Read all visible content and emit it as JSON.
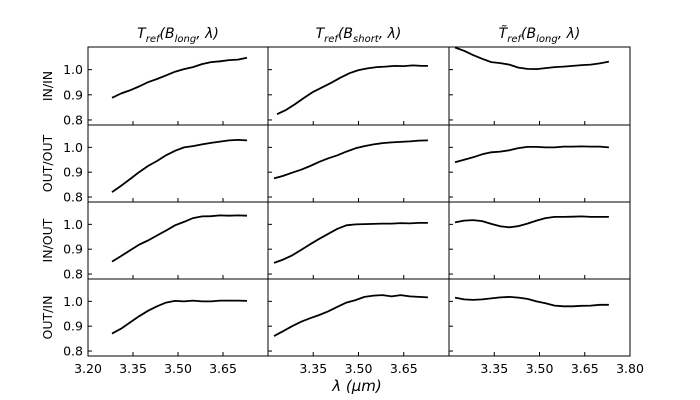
{
  "chart_data": {
    "type": "line",
    "layout": "grid",
    "xlabel": "λ (μm)",
    "xlim": [
      3.2,
      3.8
    ],
    "ylim": [
      0.78,
      1.09
    ],
    "x_ticks": [
      "3.20",
      "3.35",
      "3.50",
      "3.65",
      "3.80"
    ],
    "x_tick_values": [
      3.2,
      3.35,
      3.5,
      3.65,
      3.8
    ],
    "y_ticks": [
      "0.8",
      "0.9",
      "1.0"
    ],
    "y_tick_values": [
      0.8,
      0.9,
      1.0
    ],
    "columns": [
      {
        "title": "T_ref(B_long, λ)",
        "tilde": false,
        "base": "T",
        "sub": "ref",
        "args": "(B",
        "arg_sub": "long",
        "args_tail": ", λ)"
      },
      {
        "title": "T_ref(B_short, λ)",
        "tilde": false,
        "base": "T",
        "sub": "ref",
        "args": "(B",
        "arg_sub": "short",
        "args_tail": ", λ)"
      },
      {
        "title": "T̃_ref(B_long, λ)",
        "tilde": true,
        "base": "T̃",
        "sub": "ref",
        "args": "(B",
        "arg_sub": "long",
        "args_tail": ", λ)"
      }
    ],
    "rows": [
      "IN/IN",
      "OUT/OUT",
      "IN/OUT",
      "OUT/IN"
    ],
    "panels": [
      [
        {
          "x": [
            3.28,
            3.31,
            3.34,
            3.37,
            3.4,
            3.43,
            3.46,
            3.49,
            3.52,
            3.55,
            3.58,
            3.61,
            3.64,
            3.67,
            3.7,
            3.73
          ],
          "y": [
            0.888,
            0.905,
            0.918,
            0.933,
            0.95,
            0.963,
            0.977,
            0.992,
            1.002,
            1.01,
            1.022,
            1.03,
            1.033,
            1.038,
            1.04,
            1.047
          ]
        },
        {
          "x": [
            3.23,
            3.26,
            3.29,
            3.32,
            3.35,
            3.38,
            3.41,
            3.44,
            3.47,
            3.5,
            3.53,
            3.56,
            3.59,
            3.62,
            3.65,
            3.68,
            3.71,
            3.73
          ],
          "y": [
            0.823,
            0.84,
            0.863,
            0.888,
            0.912,
            0.93,
            0.948,
            0.968,
            0.986,
            0.998,
            1.005,
            1.01,
            1.012,
            1.015,
            1.014,
            1.017,
            1.015,
            1.015
          ]
        },
        {
          "x": [
            3.22,
            3.25,
            3.28,
            3.31,
            3.34,
            3.37,
            3.4,
            3.43,
            3.46,
            3.49,
            3.52,
            3.55,
            3.58,
            3.61,
            3.64,
            3.67,
            3.7,
            3.73
          ],
          "y": [
            1.088,
            1.075,
            1.058,
            1.043,
            1.03,
            1.026,
            1.02,
            1.008,
            1.003,
            1.002,
            1.006,
            1.01,
            1.012,
            1.015,
            1.018,
            1.02,
            1.025,
            1.032
          ]
        }
      ],
      [
        {
          "x": [
            3.28,
            3.31,
            3.34,
            3.37,
            3.4,
            3.43,
            3.46,
            3.49,
            3.52,
            3.55,
            3.58,
            3.61,
            3.64,
            3.67,
            3.7,
            3.73
          ],
          "y": [
            0.82,
            0.845,
            0.872,
            0.9,
            0.925,
            0.945,
            0.968,
            0.986,
            1.0,
            1.005,
            1.012,
            1.018,
            1.023,
            1.028,
            1.03,
            1.028
          ]
        },
        {
          "x": [
            3.22,
            3.25,
            3.28,
            3.31,
            3.34,
            3.37,
            3.4,
            3.43,
            3.46,
            3.49,
            3.52,
            3.55,
            3.58,
            3.61,
            3.64,
            3.67,
            3.7,
            3.73
          ],
          "y": [
            0.875,
            0.885,
            0.898,
            0.91,
            0.925,
            0.942,
            0.956,
            0.968,
            0.983,
            0.996,
            1.005,
            1.012,
            1.017,
            1.02,
            1.022,
            1.024,
            1.027,
            1.028
          ]
        },
        {
          "x": [
            3.22,
            3.25,
            3.28,
            3.31,
            3.34,
            3.37,
            3.4,
            3.43,
            3.46,
            3.49,
            3.52,
            3.55,
            3.58,
            3.61,
            3.64,
            3.67,
            3.7,
            3.73
          ],
          "y": [
            0.94,
            0.95,
            0.96,
            0.972,
            0.98,
            0.983,
            0.988,
            0.997,
            1.002,
            1.002,
            1.0,
            1.0,
            1.003,
            1.003,
            1.004,
            1.003,
            1.003,
            1.0
          ]
        }
      ],
      [
        {
          "x": [
            3.28,
            3.31,
            3.34,
            3.37,
            3.4,
            3.43,
            3.46,
            3.49,
            3.52,
            3.55,
            3.58,
            3.61,
            3.64,
            3.67,
            3.7,
            3.73
          ],
          "y": [
            0.85,
            0.872,
            0.895,
            0.918,
            0.935,
            0.955,
            0.975,
            0.996,
            1.01,
            1.025,
            1.032,
            1.033,
            1.036,
            1.035,
            1.036,
            1.035
          ]
        },
        {
          "x": [
            3.22,
            3.25,
            3.28,
            3.31,
            3.34,
            3.37,
            3.4,
            3.43,
            3.46,
            3.49,
            3.52,
            3.55,
            3.58,
            3.61,
            3.64,
            3.67,
            3.7,
            3.73
          ],
          "y": [
            0.845,
            0.858,
            0.875,
            0.897,
            0.92,
            0.942,
            0.962,
            0.982,
            0.996,
            1.0,
            1.001,
            1.002,
            1.003,
            1.003,
            1.005,
            1.004,
            1.006,
            1.006
          ]
        },
        {
          "x": [
            3.22,
            3.25,
            3.28,
            3.31,
            3.34,
            3.37,
            3.4,
            3.43,
            3.46,
            3.49,
            3.52,
            3.55,
            3.58,
            3.61,
            3.64,
            3.67,
            3.7,
            3.73
          ],
          "y": [
            1.008,
            1.015,
            1.017,
            1.013,
            1.002,
            0.992,
            0.988,
            0.993,
            1.003,
            1.015,
            1.025,
            1.03,
            1.03,
            1.031,
            1.032,
            1.03,
            1.03,
            1.03
          ]
        }
      ],
      [
        {
          "x": [
            3.28,
            3.31,
            3.34,
            3.37,
            3.4,
            3.43,
            3.46,
            3.49,
            3.52,
            3.55,
            3.58,
            3.61,
            3.64,
            3.67,
            3.7,
            3.73
          ],
          "y": [
            0.87,
            0.89,
            0.915,
            0.94,
            0.962,
            0.98,
            0.995,
            1.002,
            1.0,
            1.003,
            1.0,
            1.0,
            1.003,
            1.003,
            1.003,
            1.002
          ]
        },
        {
          "x": [
            3.22,
            3.25,
            3.28,
            3.31,
            3.34,
            3.37,
            3.4,
            3.43,
            3.46,
            3.49,
            3.52,
            3.55,
            3.58,
            3.61,
            3.64,
            3.67,
            3.7,
            3.73
          ],
          "y": [
            0.86,
            0.88,
            0.9,
            0.918,
            0.932,
            0.945,
            0.96,
            0.978,
            0.995,
            1.005,
            1.018,
            1.023,
            1.025,
            1.02,
            1.025,
            1.02,
            1.018,
            1.016
          ]
        },
        {
          "x": [
            3.22,
            3.25,
            3.28,
            3.31,
            3.34,
            3.37,
            3.4,
            3.43,
            3.46,
            3.49,
            3.52,
            3.55,
            3.58,
            3.61,
            3.64,
            3.67,
            3.7,
            3.73
          ],
          "y": [
            1.015,
            1.008,
            1.006,
            1.008,
            1.012,
            1.016,
            1.018,
            1.015,
            1.01,
            1.0,
            0.992,
            0.983,
            0.98,
            0.98,
            0.982,
            0.983,
            0.986,
            0.986
          ]
        }
      ]
    ]
  }
}
